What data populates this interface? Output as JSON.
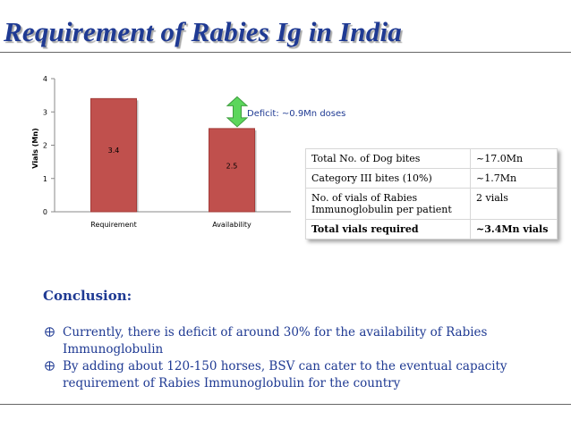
{
  "title": "Requirement of Rabies Ig in India",
  "chart_data": {
    "type": "bar",
    "categories": [
      "Requirement",
      "Availability"
    ],
    "values": [
      3.4,
      2.5
    ],
    "data_labels": [
      "3.4",
      "2.5"
    ],
    "ylabel": "Vials (Mn)",
    "ylim": [
      0,
      4
    ],
    "yticks": [
      0,
      1,
      2,
      3,
      4
    ],
    "bar_color": "#c0504d",
    "annotation": "Deficit: ~0.9Mn doses",
    "grid": false,
    "legend": "none"
  },
  "table": {
    "rows": [
      {
        "label": "Total No. of Dog bites",
        "value": "~17.0Mn"
      },
      {
        "label": "Category III bites (10%)",
        "value": "~1.7Mn"
      },
      {
        "label": "No. of vials of Rabies Immunoglobulin per patient",
        "value": "2 vials"
      },
      {
        "label": "Total vials required",
        "value": "~3.4Mn vials"
      }
    ]
  },
  "conclusion": {
    "heading": "Conclusion:",
    "bullets": [
      "Currently, there is  deficit of around 30% for the availability of Rabies Immunoglobulin",
      "By adding about 120-150 horses, BSV can cater to the eventual capacity requirement of Rabies Immunoglobulin for the country"
    ]
  },
  "colors": {
    "title": "#1f3a93",
    "arrow": "#5cd65c",
    "bar": "#c0504d"
  }
}
